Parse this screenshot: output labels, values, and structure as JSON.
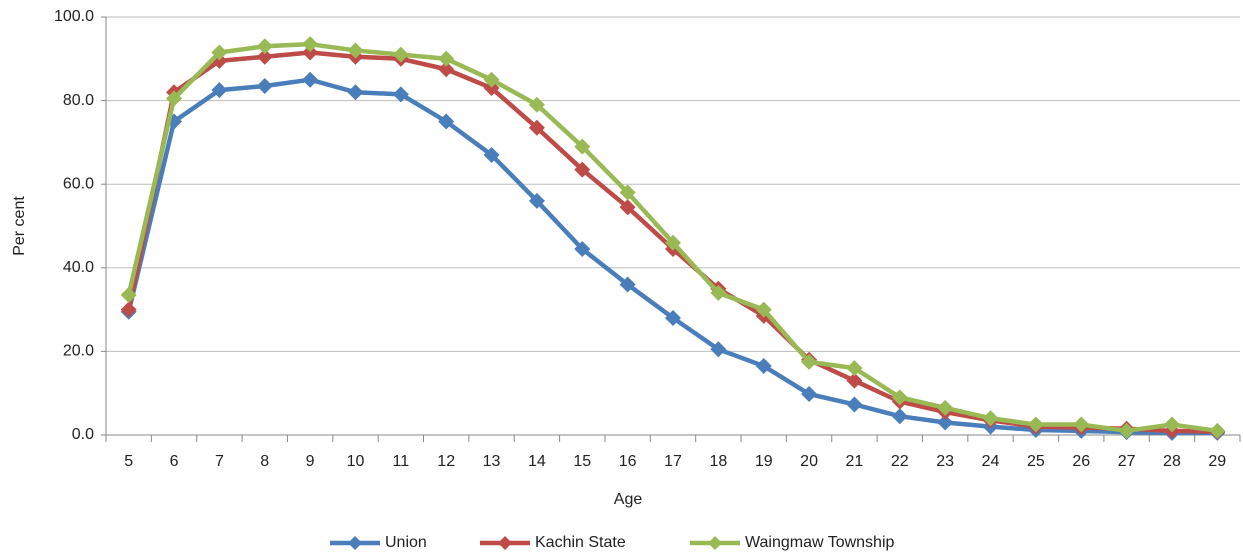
{
  "chart_data": {
    "type": "line",
    "x_label": "Age",
    "y_label": "Per cent",
    "categories": [
      "5",
      "6",
      "7",
      "8",
      "9",
      "10",
      "11",
      "12",
      "13",
      "14",
      "15",
      "16",
      "17",
      "18",
      "19",
      "20",
      "21",
      "22",
      "23",
      "24",
      "25",
      "26",
      "27",
      "28",
      "29"
    ],
    "series": [
      {
        "name": "Union",
        "color": "#4a7ebb",
        "values": [
          29.5,
          75,
          82.5,
          83.5,
          85,
          82,
          81.5,
          75,
          67,
          56,
          44.5,
          36,
          28,
          20.5,
          16.5,
          9.8,
          7.3,
          4.5,
          3,
          2,
          1.2,
          1,
          0.7,
          0.5,
          0.5
        ]
      },
      {
        "name": "Kachin State",
        "color": "#be4b48",
        "values": [
          30,
          82,
          89.5,
          90.5,
          91.5,
          90.5,
          90,
          87.5,
          83,
          73.5,
          63.5,
          54.5,
          44.5,
          35,
          28.5,
          18,
          13,
          8,
          5.5,
          3.5,
          2,
          1.8,
          1.5,
          1,
          0.8
        ]
      },
      {
        "name": "Waingmaw Township",
        "color": "#98b954",
        "values": [
          33.5,
          80.5,
          91.5,
          93,
          93.5,
          92,
          91,
          90,
          85,
          79,
          69,
          58,
          46,
          34,
          30,
          17.5,
          16,
          9,
          6.5,
          4,
          2.5,
          2.5,
          1,
          2.5,
          1
        ]
      }
    ],
    "ylim": [
      0,
      100
    ],
    "yticks": [
      {
        "value": 0,
        "label": "0.0"
      },
      {
        "value": 20,
        "label": "20.0"
      },
      {
        "value": 40,
        "label": "40.0"
      },
      {
        "value": 60,
        "label": "60.0"
      },
      {
        "value": 80,
        "label": "80.0"
      },
      {
        "value": 100,
        "label": "100.0"
      }
    ],
    "grid": true,
    "legend": "bottom"
  }
}
